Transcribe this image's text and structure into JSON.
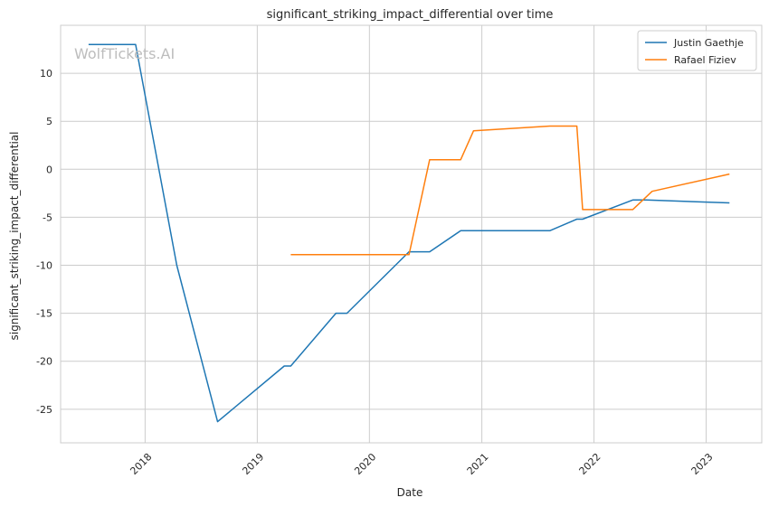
{
  "chart_data": {
    "type": "line",
    "title": "significant_striking_impact_differential over time",
    "xlabel": "Date",
    "ylabel": "significant_striking_impact_differential",
    "watermark": "WolfTickets.AI",
    "xlim": [
      "2017-04-01",
      "2023-07-01"
    ],
    "ylim": [
      -28.5,
      15
    ],
    "x_ticks": [
      {
        "value": "2018-01-01",
        "label": "2018"
      },
      {
        "value": "2019-01-01",
        "label": "2019"
      },
      {
        "value": "2020-01-01",
        "label": "2020"
      },
      {
        "value": "2021-01-01",
        "label": "2021"
      },
      {
        "value": "2022-01-01",
        "label": "2022"
      },
      {
        "value": "2023-01-01",
        "label": "2023"
      }
    ],
    "y_ticks": [
      10,
      5,
      0,
      -5,
      -10,
      -15,
      -20,
      -25
    ],
    "grid": true,
    "legend_position": "top-right",
    "series": [
      {
        "name": "Justin Gaethje",
        "color": "#1f77b4",
        "points": [
          {
            "x": "2017-07-01",
            "y": 13
          },
          {
            "x": "2017-12-01",
            "y": 13
          },
          {
            "x": "2018-04-14",
            "y": -10
          },
          {
            "x": "2018-08-25",
            "y": -26.3
          },
          {
            "x": "2019-03-30",
            "y": -20.5
          },
          {
            "x": "2019-04-20",
            "y": -20.5
          },
          {
            "x": "2019-09-14",
            "y": -15
          },
          {
            "x": "2019-10-20",
            "y": -15
          },
          {
            "x": "2020-05-09",
            "y": -8.6
          },
          {
            "x": "2020-07-15",
            "y": -8.6
          },
          {
            "x": "2020-10-24",
            "y": -6.4
          },
          {
            "x": "2021-08-10",
            "y": -6.4
          },
          {
            "x": "2021-11-06",
            "y": -5.2
          },
          {
            "x": "2021-11-25",
            "y": -5.2
          },
          {
            "x": "2022-05-07",
            "y": -3.2
          },
          {
            "x": "2022-06-20",
            "y": -3.2
          },
          {
            "x": "2023-03-18",
            "y": -3.5
          }
        ]
      },
      {
        "name": "Rafael Fiziev",
        "color": "#ff7f0e",
        "points": [
          {
            "x": "2019-04-20",
            "y": -8.9
          },
          {
            "x": "2020-05-09",
            "y": -8.9
          },
          {
            "x": "2020-07-15",
            "y": 1
          },
          {
            "x": "2020-10-24",
            "y": 1
          },
          {
            "x": "2020-12-05",
            "y": 4
          },
          {
            "x": "2021-08-10",
            "y": 4.5
          },
          {
            "x": "2021-11-06",
            "y": 4.5
          },
          {
            "x": "2021-11-25",
            "y": -4.2
          },
          {
            "x": "2022-05-07",
            "y": -4.2
          },
          {
            "x": "2022-07-09",
            "y": -2.3
          },
          {
            "x": "2023-03-18",
            "y": -0.5
          }
        ]
      }
    ]
  }
}
